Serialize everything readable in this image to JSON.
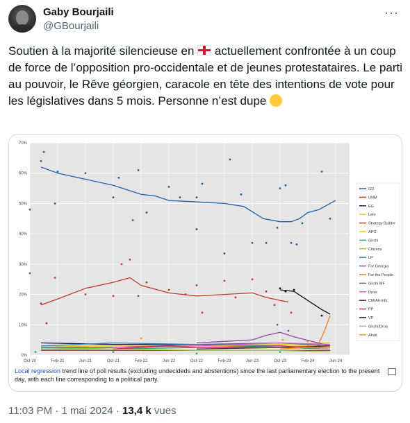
{
  "header": {
    "display_name": "Gaby Bourjaili",
    "handle": "@GBourjaili",
    "more_label": "···"
  },
  "tweet": {
    "line1_a": "Soutien à la majorité silencieuse en ",
    "line1_b": " actuellement confrontée à un coup de force de l’opposition pro-occidentale et de jeunes protestataires. Le parti au pouvoir, le Rêve géorgien, caracole en tête des intentions de vote pour les législatives dans 5 mois. Personne n’est dupe ",
    "flag_icon": "georgia-flag-icon",
    "emoji_icon": "grinning-face-emoji"
  },
  "caption": {
    "link": "Local regression",
    "text": " trend line of poll results (excluding undecideds and abstentions) since the last parliamentary election to the present day, with each line corresponding to a political party."
  },
  "footer": {
    "time": "11:03 PM",
    "sep": " · ",
    "date": "1 mai 2024",
    "sep2": " · ",
    "views": "13,4 k",
    "views_label": " vues"
  },
  "chart_data": {
    "type": "line",
    "title": "",
    "xlabel": "",
    "ylabel": "",
    "ylim": [
      0,
      70
    ],
    "yticks": [
      "0%",
      "10%",
      "20%",
      "30%",
      "40%",
      "50%",
      "60%",
      "70%"
    ],
    "xticks": [
      "Oct-20",
      "Feb-21",
      "Jun-21",
      "Oct-21",
      "Feb-22",
      "Jun-22",
      "Oct-22",
      "Feb-23",
      "Jun-23",
      "Oct-23",
      "Feb-24",
      "Jun-24"
    ],
    "grid": true,
    "legend_placement": "right",
    "series": [
      {
        "name": "GD",
        "color": "#1f5fa8",
        "x": [
          0.4,
          1,
          2,
          3,
          4,
          4.5,
          5,
          6,
          7,
          7.7,
          8.4,
          9,
          9.4,
          9.7,
          10,
          10.4,
          11
        ],
        "values": [
          62,
          60,
          58,
          56,
          53,
          52.5,
          51,
          50.5,
          50,
          49,
          45,
          44,
          44,
          45,
          47,
          48,
          51
        ]
      },
      {
        "name": "UNM",
        "color": "#c0392b",
        "x": [
          0.4,
          1,
          2,
          3,
          3.6,
          4,
          5,
          6,
          7,
          8,
          8.5,
          9,
          9.3
        ],
        "values": [
          16.5,
          18.5,
          22,
          24,
          25.5,
          23,
          20.5,
          19.5,
          20,
          20.5,
          19,
          18,
          17.5
        ]
      },
      {
        "name": "EG",
        "color": "#1a1a4a",
        "x": [
          0.4,
          3,
          6,
          9,
          10.8
        ],
        "values": [
          4,
          3.5,
          3.5,
          3,
          2.5
        ]
      },
      {
        "name": "Lelo",
        "color": "#e7c81d",
        "x": [
          0.4,
          3,
          6,
          9,
          10.8
        ],
        "values": [
          3,
          2.5,
          3,
          3.5,
          4
        ]
      },
      {
        "name": "Strategy Builder",
        "color": "#c0392b",
        "x": [
          0.4,
          3,
          6,
          9,
          10.8
        ],
        "values": [
          1.5,
          1.5,
          1.5,
          1.5,
          1.5
        ]
      },
      {
        "name": "APG",
        "color": "#f1c40f",
        "x": [
          0.4,
          3,
          6,
          9,
          10.8
        ],
        "values": [
          3,
          3,
          3,
          3,
          3
        ]
      },
      {
        "name": "Girchi",
        "color": "#27ae60",
        "x": [
          0.4,
          3,
          6,
          9,
          10.8
        ],
        "values": [
          2,
          2,
          2.5,
          2.5,
          2
        ]
      },
      {
        "name": "Citizens",
        "color": "#9acd32",
        "x": [
          0.4,
          3,
          6,
          9,
          10.8
        ],
        "values": [
          2.5,
          2,
          1.5,
          1.5,
          1
        ]
      },
      {
        "name": "LP",
        "color": "#2e86c1",
        "x": [
          0.4,
          3,
          6,
          9,
          10.8
        ],
        "values": [
          3,
          4,
          3.5,
          3,
          2
        ]
      },
      {
        "name": "For Georgia",
        "color": "#8e44ad",
        "x": [
          6,
          7,
          8,
          8.5,
          9,
          9.5,
          10.8
        ],
        "values": [
          4,
          4.5,
          5,
          6.5,
          7.5,
          6,
          3
        ]
      },
      {
        "name": "For the People",
        "color": "#e67e22",
        "x": [
          10.3,
          10.6,
          10.8
        ],
        "values": [
          2,
          8,
          13
        ]
      },
      {
        "name": "Girchi MF",
        "color": "#566573",
        "x": [
          0.4,
          3,
          6,
          9,
          10.8
        ],
        "values": [
          2.5,
          2.5,
          3.5,
          4,
          3
        ]
      },
      {
        "name": "Droa",
        "color": "#d35ddb",
        "x": [
          3,
          6,
          9,
          10.8
        ],
        "values": [
          2.5,
          3,
          4,
          3.5
        ]
      },
      {
        "name": "CM/Alt-Info",
        "color": "#4a2f2f",
        "x": [
          6,
          9,
          10.8
        ],
        "values": [
          2,
          2.5,
          3
        ]
      },
      {
        "name": "PP",
        "color": "#e91e63",
        "x": [
          3,
          5,
          6,
          9,
          10.8
        ],
        "values": [
          2,
          3,
          2.5,
          3,
          2
        ]
      },
      {
        "name": "VP",
        "color": "#111111",
        "x": [
          9,
          9.5,
          10,
          10.5,
          10.8
        ],
        "values": [
          21.5,
          21,
          18,
          15,
          13.5
        ]
      },
      {
        "name": "Girchi/Droa",
        "color": "#aaaaaa",
        "x": [
          9,
          10,
          10.8
        ],
        "values": [
          2,
          2.5,
          2
        ]
      },
      {
        "name": "Ahali",
        "color": "#f39c12",
        "x": [
          9,
          10,
          10.8
        ],
        "values": [
          2,
          2.5,
          2.5
        ]
      }
    ],
    "scatter": [
      {
        "color": "#1f5fa8",
        "points": [
          [
            0,
            48
          ],
          [
            0.4,
            64
          ],
          [
            0.5,
            67
          ],
          [
            0.9,
            50
          ],
          [
            1,
            60.5
          ],
          [
            2,
            60
          ],
          [
            3,
            52
          ],
          [
            3.2,
            58.5
          ],
          [
            3.7,
            44.5
          ],
          [
            3.9,
            61
          ],
          [
            4.2,
            47
          ],
          [
            5,
            55.5
          ],
          [
            5.4,
            52
          ],
          [
            6,
            52
          ],
          [
            6.2,
            56.5
          ],
          [
            6,
            41.5
          ],
          [
            7,
            33.5
          ],
          [
            7.2,
            64.5
          ],
          [
            7.6,
            53
          ],
          [
            8,
            37
          ],
          [
            8.5,
            37
          ],
          [
            8.9,
            42
          ],
          [
            9,
            55
          ],
          [
            9.2,
            56
          ],
          [
            9.4,
            37
          ],
          [
            9.6,
            36.5
          ],
          [
            9.8,
            43.5
          ],
          [
            10.5,
            60.5
          ],
          [
            10.8,
            45
          ]
        ]
      },
      {
        "color": "#c0392b",
        "points": [
          [
            0,
            27
          ],
          [
            0.4,
            17
          ],
          [
            0.6,
            10.5
          ],
          [
            0.9,
            25.5
          ],
          [
            2,
            20
          ],
          [
            3,
            19.5
          ],
          [
            3.3,
            30
          ],
          [
            3.6,
            31.5
          ],
          [
            3.9,
            19.5
          ],
          [
            4.2,
            24
          ],
          [
            5,
            21.5
          ],
          [
            5.6,
            20
          ],
          [
            6,
            23
          ],
          [
            6.2,
            14
          ],
          [
            7,
            24.5
          ],
          [
            7.4,
            19
          ],
          [
            8,
            25
          ],
          [
            8.5,
            21
          ],
          [
            8.8,
            16.5
          ],
          [
            9.4,
            14
          ]
        ]
      },
      {
        "color": "#111111",
        "points": [
          [
            9,
            22
          ],
          [
            9.2,
            21
          ],
          [
            9.5,
            21.5
          ],
          [
            10.5,
            13
          ]
        ]
      },
      {
        "color": "#8e44ad",
        "points": [
          [
            8.9,
            10
          ],
          [
            9.3,
            8
          ],
          [
            10,
            3
          ]
        ]
      },
      {
        "color": "#f39c12",
        "points": [
          [
            4,
            5.5
          ],
          [
            9.1,
            5
          ],
          [
            10,
            4.5
          ]
        ]
      },
      {
        "color": "#27ae60",
        "points": [
          [
            0.2,
            1
          ],
          [
            3,
            1
          ],
          [
            6,
            0.5
          ],
          [
            9,
            1
          ]
        ]
      }
    ]
  }
}
